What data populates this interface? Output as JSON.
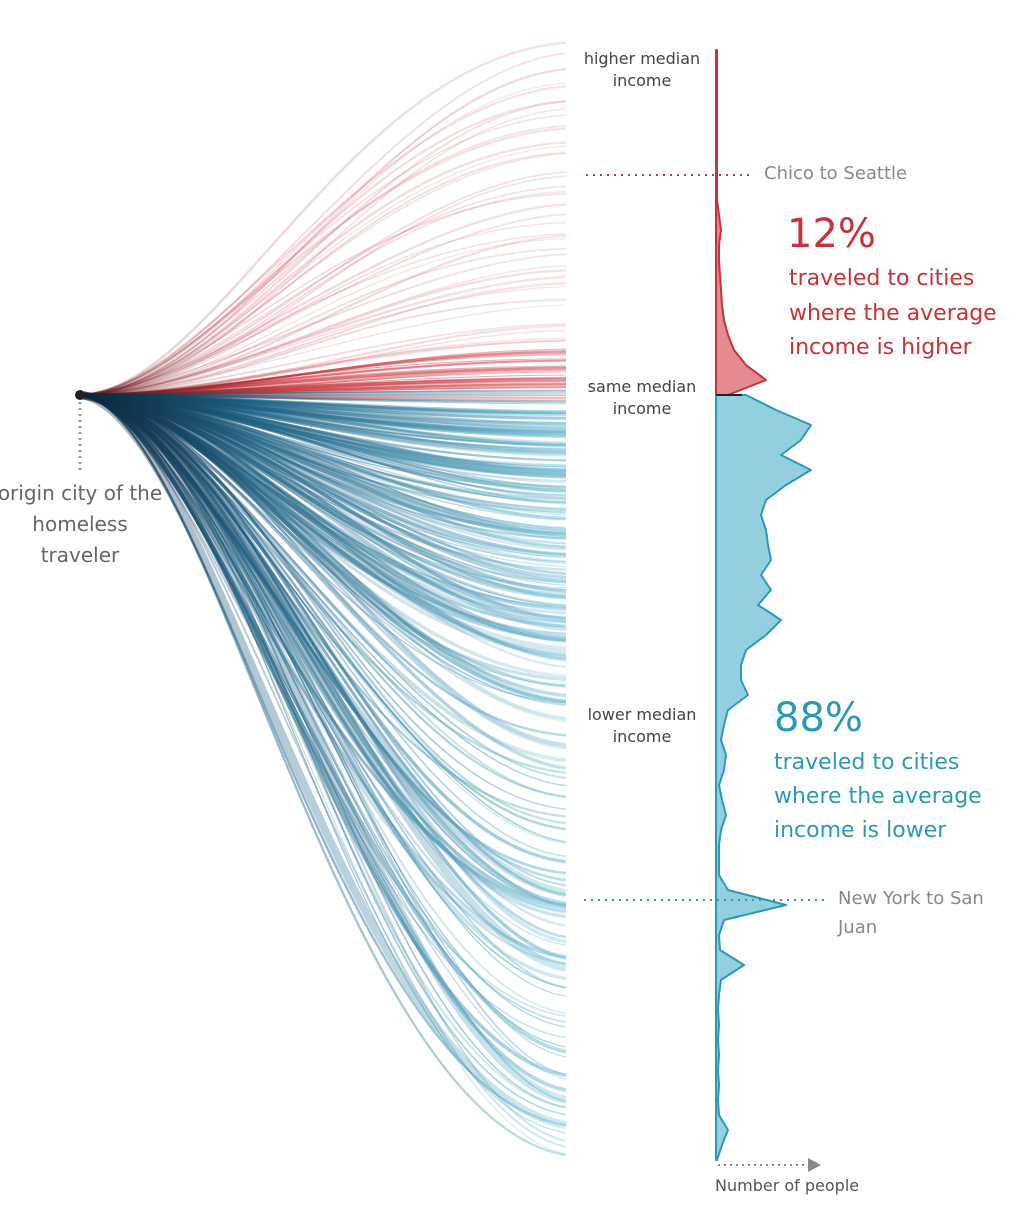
{
  "chart_data": {
    "type": "area",
    "title": "",
    "axis_labels": {
      "higher": "higher median income",
      "same": "same median income",
      "lower": "lower median income",
      "x_arrow": "Number of people"
    },
    "origin_label": "origin city of the homeless traveler",
    "annotations": {
      "top_route": "Chico to Seattle",
      "bottom_route_line1": "New York to San",
      "bottom_route_line2": "Juan"
    },
    "higher": {
      "percent": "12%",
      "text": [
        "traveled to cities",
        "where the average",
        "income is higher"
      ],
      "color": "#c8323a",
      "fill": "#e38a92",
      "density_relative": [
        0.01,
        0.01,
        0.01,
        0.01,
        0.01,
        0.01,
        0.01,
        0.01,
        0.01,
        0.01,
        0.01,
        0.03,
        0.05,
        0.03,
        0.03,
        0.04,
        0.05,
        0.06,
        0.08,
        0.12,
        0.18,
        0.3,
        0.5,
        0.12
      ]
    },
    "lower": {
      "percent": "88%",
      "text": [
        "traveled to cities",
        "where the average",
        "income is lower"
      ],
      "color": "#2a9ab8",
      "fill": "#93cfdf",
      "density_relative": [
        0.3,
        0.6,
        0.95,
        0.85,
        0.65,
        0.95,
        0.7,
        0.5,
        0.45,
        0.5,
        0.52,
        0.55,
        0.45,
        0.55,
        0.42,
        0.65,
        0.5,
        0.3,
        0.25,
        0.25,
        0.32,
        0.12,
        0.08,
        0.05,
        0.1,
        0.08,
        0.03,
        0.06,
        0.1,
        0.05,
        0.03,
        0.03,
        0.03,
        0.12,
        0.7,
        0.08,
        0.03,
        0.04,
        0.28,
        0.05,
        0.03,
        0.02,
        0.03,
        0.02,
        0.03,
        0.02,
        0.03,
        0.02,
        0.03,
        0.12,
        0.06,
        0.01
      ]
    }
  }
}
